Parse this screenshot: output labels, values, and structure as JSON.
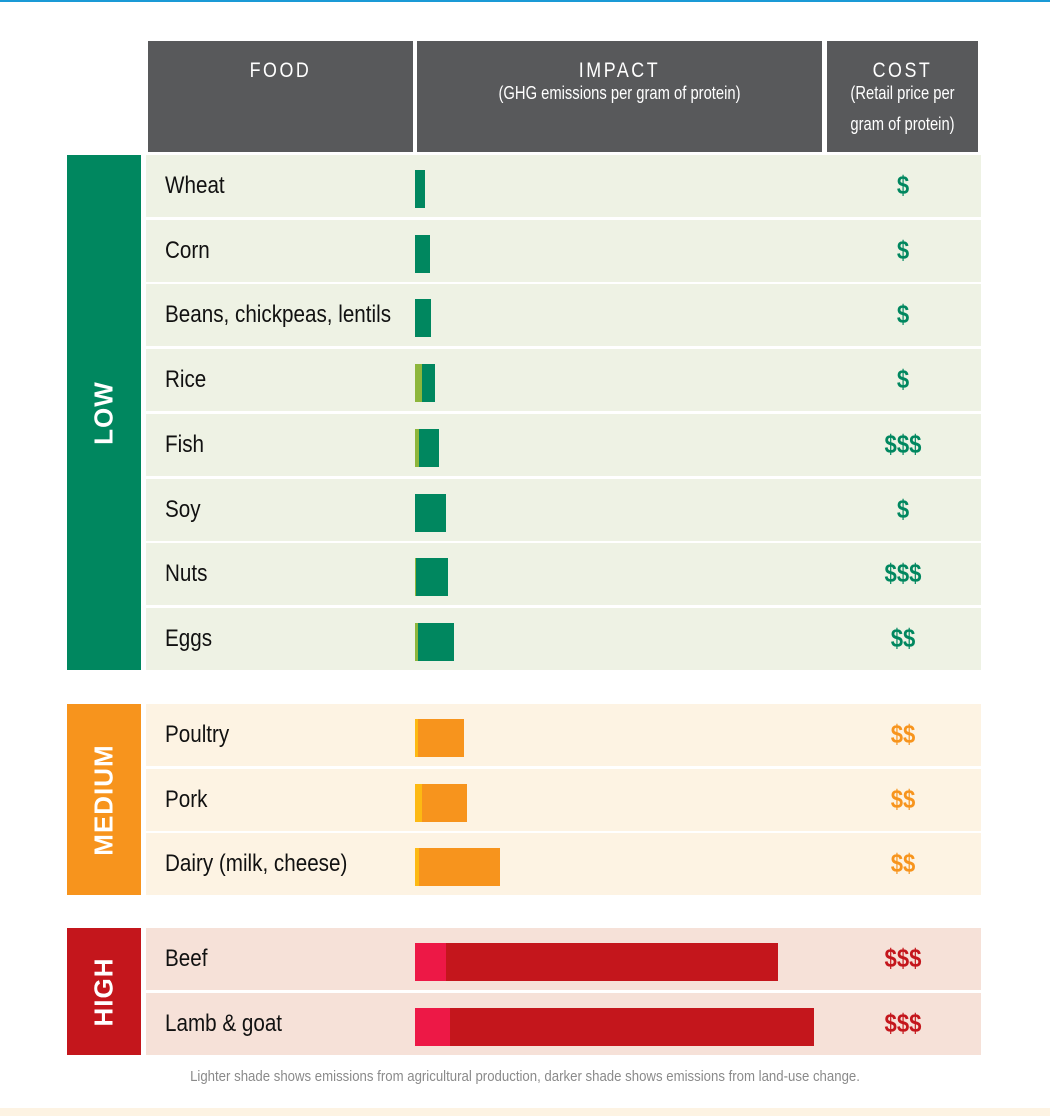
{
  "header": {
    "food": "FOOD",
    "impact": "IMPACT",
    "impact_sub": "(GHG emissions per gram of protein)",
    "cost": "COST",
    "cost_sub_1": "(Retail price per",
    "cost_sub_2": "gram of protein)"
  },
  "footnote": "Lighter shade shows emissions from agricultural production, darker shade shows emissions from land-use change.",
  "chart_data": {
    "type": "bar",
    "stacked": true,
    "orientation": "horizontal",
    "note": "relative bar lengths, no numeric axis printed",
    "groups": [
      {
        "label": "LOW",
        "color": "#00875f",
        "light_color": "#8db63c",
        "row_bg": "#eef2e4",
        "items": [
          {
            "food": "Wheat",
            "light": 0,
            "dark": 10,
            "cost": "$"
          },
          {
            "food": "Corn",
            "light": 0,
            "dark": 15,
            "cost": "$"
          },
          {
            "food": "Beans, chickpeas, lentils",
            "light": 0,
            "dark": 16,
            "cost": "$"
          },
          {
            "food": "Rice",
            "light": 7,
            "dark": 13,
            "cost": "$"
          },
          {
            "food": "Fish",
            "light": 4,
            "dark": 20,
            "cost": "$$$"
          },
          {
            "food": "Soy",
            "light": 0,
            "dark": 31,
            "cost": "$"
          },
          {
            "food": "Nuts",
            "light": 1,
            "dark": 32,
            "cost": "$$$"
          },
          {
            "food": "Eggs",
            "light": 3,
            "dark": 36,
            "cost": "$$"
          }
        ]
      },
      {
        "label": "MEDIUM",
        "color": "#f7941d",
        "light_color": "#fdb913",
        "row_bg": "#fdf3e3",
        "items": [
          {
            "food": "Poultry",
            "light": 3,
            "dark": 46,
            "cost": "$$"
          },
          {
            "food": "Pork",
            "light": 7,
            "dark": 45,
            "cost": "$$"
          },
          {
            "food": "Dairy (milk, cheese)",
            "light": 4,
            "dark": 81,
            "cost": "$$"
          }
        ]
      },
      {
        "label": "HIGH",
        "color": "#c4161c",
        "light_color": "#ed1846",
        "row_bg": "#f6e1d8",
        "items": [
          {
            "food": "Beef",
            "light": 31,
            "dark": 332,
            "cost": "$$$"
          },
          {
            "food": "Lamb & goat",
            "light": 35,
            "dark": 364,
            "cost": "$$$"
          }
        ]
      }
    ]
  }
}
